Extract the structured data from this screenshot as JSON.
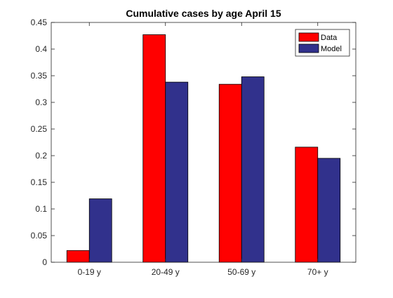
{
  "chart_data": {
    "type": "bar",
    "title": "Cumulative cases by age April 15",
    "xlabel": "",
    "ylabel": "",
    "categories": [
      "0-19 y",
      "20-49 y",
      "50-69 y",
      "70+ y"
    ],
    "series": [
      {
        "name": "Data",
        "color": "#ff0000",
        "values": [
          0.022,
          0.427,
          0.334,
          0.216
        ]
      },
      {
        "name": "Model",
        "color": "#31318c",
        "values": [
          0.119,
          0.338,
          0.348,
          0.195
        ]
      }
    ],
    "ylim": [
      0,
      0.45
    ],
    "yticks": [
      "0",
      "0.05",
      "0.1",
      "0.15",
      "0.2",
      "0.25",
      "0.3",
      "0.35",
      "0.4",
      "0.45"
    ],
    "grid": false,
    "legend_position": "top-right"
  }
}
